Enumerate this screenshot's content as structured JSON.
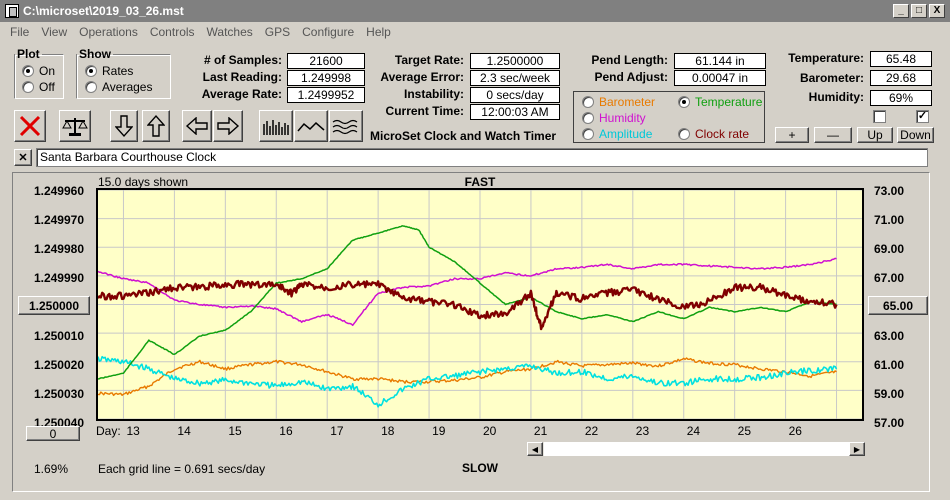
{
  "window": {
    "title": "C:\\microset\\2019_03_26.mst",
    "min": "_",
    "max": "□",
    "close": "X"
  },
  "menu": [
    "File",
    "View",
    "Operations",
    "Controls",
    "Watches",
    "GPS",
    "Configure",
    "Help"
  ],
  "plot": {
    "legend": "Plot",
    "on": "On",
    "off": "Off",
    "selected": "On"
  },
  "show": {
    "legend": "Show",
    "rates": "Rates",
    "averages": "Averages",
    "selected": "Rates"
  },
  "stats": {
    "samples_label": "# of Samples:",
    "samples": "21600",
    "last_label": "Last Reading:",
    "last": "1.249998",
    "avg_rate_label": "Average Rate:",
    "avg_rate": "1.2499952",
    "target_label": "Target Rate:",
    "target": "1.2500000",
    "avg_err_label": "Average Error:",
    "avg_err": "2.3 sec/week",
    "instab_label": "Instability:",
    "instab": "0 secs/day",
    "time_label": "Current Time:",
    "time": "12:00:03 AM",
    "pend_len_label": "Pend Length:",
    "pend_len": "61.144 in",
    "pend_adj_label": "Pend Adjust:",
    "pend_adj": "0.00047 in",
    "temp_label": "Temperature:",
    "temp": "65.48",
    "baro_label": "Barometer:",
    "baro": "29.68",
    "hum_label": "Humidity:",
    "hum": "69%"
  },
  "app_name": "MicroSet Clock and Watch Timer",
  "sensor": {
    "barometer": "Barometer",
    "temperature": "Temperature",
    "humidity": "Humidity",
    "amplitude": "Amplitude",
    "clockrate": "Clock rate",
    "selected": "Temperature",
    "colors": {
      "barometer": "#e87a00",
      "temperature": "#10a010",
      "humidity": "#d010d0",
      "amplitude": "#00e0e0",
      "clockrate": "#800000"
    }
  },
  "scale_buttons": {
    "plus": "+",
    "minus": "—",
    "up": "Up",
    "down": "Down"
  },
  "checks": {
    "left": "",
    "right": "✓"
  },
  "watch_name": "Santa Barbara Courthouse Clock",
  "close_x": "✕",
  "graph": {
    "days_shown": "15.0 days shown",
    "fast": "FAST",
    "slow": "SLOW",
    "left_ticks": [
      "1.249960",
      "1.249970",
      "1.249980",
      "1.249990",
      "1.250000",
      "1.250010",
      "1.250020",
      "1.250030",
      "1.250040"
    ],
    "left_highlight": "1.250000",
    "right_ticks": [
      "73.00",
      "71.00",
      "69.00",
      "67.00",
      "65.00",
      "63.00",
      "61.00",
      "59.00",
      "57.00"
    ],
    "right_highlight": "65.00",
    "day_label": "Day:",
    "days": [
      "13",
      "14",
      "15",
      "16",
      "17",
      "18",
      "19",
      "20",
      "21",
      "22",
      "23",
      "24",
      "25",
      "26"
    ],
    "grid_note": "Each grid line = 0.691 secs/day",
    "zero_button": "0",
    "percent": "1.69%"
  },
  "chart_data": {
    "type": "line",
    "title": "",
    "xlabel": "Day",
    "x_range": [
      12.5,
      27.5
    ],
    "left_axis": {
      "label": "Rate",
      "range": [
        1.24996,
        1.25004
      ],
      "inverted": true
    },
    "right_axis": {
      "label": "Temperature",
      "range": [
        57,
        73
      ]
    },
    "series": [
      {
        "name": "Clock rate",
        "color": "#800000",
        "axis": "left",
        "x": [
          12.5,
          13,
          13.5,
          14,
          14.5,
          15,
          15.5,
          16,
          16.3,
          16.5,
          17,
          17.5,
          18,
          18.5,
          19,
          19.5,
          20,
          20.5,
          21,
          21.2,
          21.5,
          22,
          22.5,
          23,
          23.5,
          24,
          24.5,
          25,
          25.5,
          26,
          26.5,
          27
        ],
        "values": [
          1.249997,
          1.249997,
          1.249996,
          1.249994,
          1.249994,
          1.249993,
          1.249993,
          1.249993,
          1.249996,
          1.249993,
          1.249994,
          1.249993,
          1.249993,
          1.249998,
          1.249999,
          1.25,
          1.250004,
          1.250003,
          1.249996,
          1.250008,
          1.249996,
          1.249998,
          1.249996,
          1.249995,
          1.249998,
          1.250001,
          1.249999,
          1.249994,
          1.249994,
          1.249997,
          1.249999,
          1.25
        ]
      },
      {
        "name": "Temperature",
        "color": "#10a010",
        "axis": "right",
        "x": [
          12.5,
          13,
          13.5,
          14,
          14.5,
          15,
          15.5,
          16,
          16.5,
          17,
          17.5,
          18,
          18.5,
          18.8,
          19,
          19.5,
          20,
          20.5,
          21,
          21.5,
          22,
          22.5,
          23,
          23.5,
          24,
          24.5,
          25,
          25.5,
          26,
          26.5,
          27
        ],
        "values": [
          59.8,
          60.2,
          62.5,
          61.5,
          62.8,
          63.2,
          64.5,
          66.5,
          66.8,
          67.5,
          69.5,
          70.0,
          70.5,
          70.2,
          69.0,
          68.0,
          66.5,
          65.0,
          65.5,
          64.5,
          64.0,
          64.3,
          63.8,
          64.5,
          64.0,
          64.8,
          64.5,
          64.8,
          64.5,
          65.2,
          65.0
        ]
      },
      {
        "name": "Humidity",
        "color": "#d010d0",
        "axis": "right",
        "x": [
          12.5,
          13,
          13.5,
          14,
          14.5,
          15,
          15.5,
          16,
          16.5,
          17,
          17.5,
          18,
          18.5,
          19,
          19.5,
          20,
          20.5,
          21,
          21.5,
          22,
          22.5,
          23,
          23.5,
          24,
          24.5,
          25,
          25.5,
          26,
          26.5,
          27
        ],
        "values": [
          67.3,
          66.8,
          66.5,
          65.3,
          65.0,
          64.8,
          64.9,
          64.7,
          63.8,
          64.3,
          63.6,
          65.8,
          66.2,
          66.3,
          66.8,
          66.8,
          67.2,
          67.0,
          67.5,
          67.6,
          67.8,
          67.5,
          67.8,
          67.8,
          67.7,
          67.6,
          67.5,
          67.6,
          67.8,
          68.2
        ]
      },
      {
        "name": "Barometer",
        "color": "#e87a00",
        "axis": "right",
        "x": [
          12.5,
          13,
          13.5,
          14,
          14.5,
          15,
          15.5,
          16,
          16.5,
          17,
          17.5,
          18,
          18.5,
          19,
          19.5,
          20,
          20.5,
          21,
          21.5,
          22,
          22.5,
          23,
          23.5,
          24,
          24.5,
          25,
          25.5,
          26,
          26.5,
          27
        ],
        "values": [
          58.8,
          58.7,
          59.3,
          60.5,
          61.0,
          60.5,
          60.8,
          61.0,
          60.8,
          60.3,
          59.8,
          59.8,
          59.6,
          59.6,
          59.7,
          59.9,
          60.3,
          60.5,
          61.0,
          60.7,
          60.8,
          60.9,
          60.7,
          61.2,
          60.9,
          60.8,
          60.5,
          60.3,
          60.0,
          60.3
        ]
      },
      {
        "name": "Amplitude",
        "color": "#00e0e0",
        "axis": "right",
        "x": [
          12.5,
          13,
          13.5,
          14,
          14.5,
          15,
          15.5,
          16,
          16.5,
          17,
          17.5,
          18,
          18.5,
          19,
          19.5,
          20,
          20.5,
          21,
          21.5,
          22,
          22.5,
          23,
          23.5,
          24,
          24.5,
          25,
          25.5,
          26,
          26.5,
          27
        ],
        "values": [
          61.2,
          61.0,
          60.5,
          59.8,
          59.5,
          59.7,
          59.5,
          59.3,
          59.6,
          59.1,
          59.3,
          58.0,
          59.1,
          59.8,
          60.0,
          60.3,
          60.5,
          60.7,
          60.2,
          60.3,
          59.8,
          60.0,
          59.5,
          59.5,
          59.8,
          59.8,
          59.9,
          60.2,
          60.4,
          60.5
        ]
      }
    ]
  }
}
